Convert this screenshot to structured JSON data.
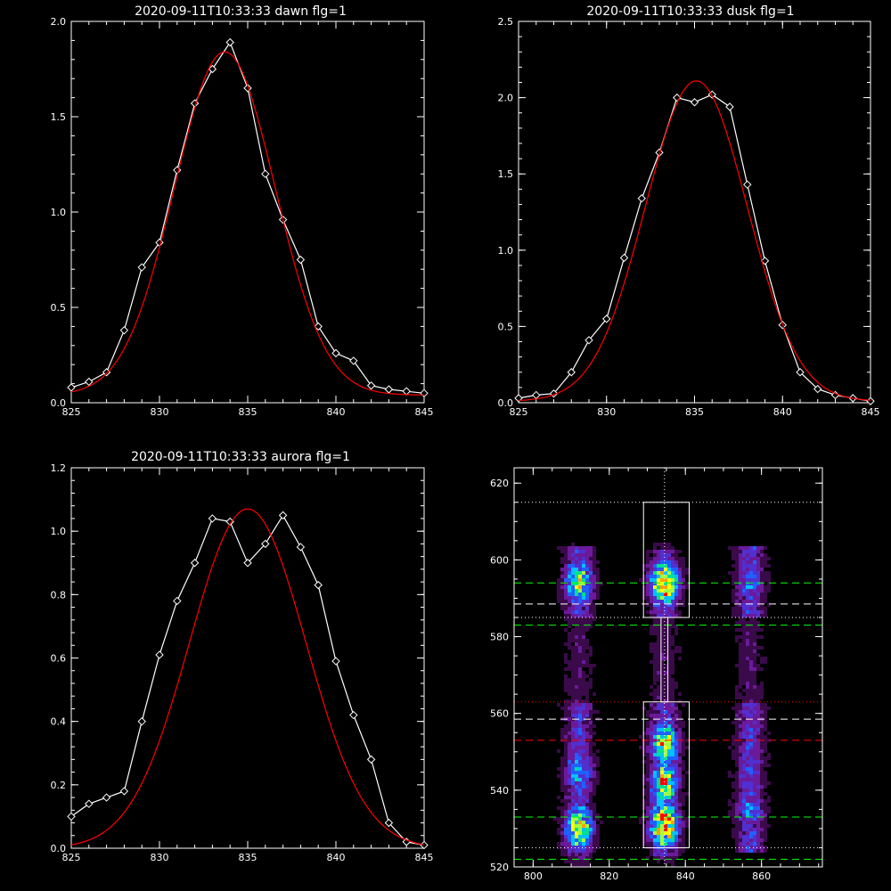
{
  "chart_data": [
    {
      "type": "line",
      "title": "2020-09-11T10:33:33 dawn flg=1",
      "xlim": [
        825,
        845
      ],
      "ylim": [
        0,
        2.0
      ],
      "xticks": [
        "825",
        "830",
        "835",
        "840",
        "845"
      ],
      "yticks": [
        "0.0",
        "0.5",
        "1.0",
        "1.5",
        "2.0"
      ],
      "series": [
        {
          "style": "data",
          "color": "#ffffff",
          "x": [
            825,
            826,
            827,
            828,
            829,
            830,
            831,
            832,
            833,
            834,
            835,
            836,
            837,
            838,
            839,
            840,
            841,
            842,
            843,
            844,
            845
          ],
          "y": [
            0.08,
            0.11,
            0.16,
            0.38,
            0.71,
            0.84,
            1.22,
            1.57,
            1.75,
            1.89,
            1.65,
            1.2,
            0.96,
            0.75,
            0.4,
            0.26,
            0.22,
            0.09,
            0.07,
            0.06,
            0.05
          ]
        },
        {
          "style": "fit",
          "color": "#ff0000",
          "kind": "gaussian",
          "amp": 1.8,
          "center": 833.7,
          "sigma": 2.85,
          "base": 0.04
        }
      ]
    },
    {
      "type": "line",
      "title": "2020-09-11T10:33:33 dusk flg=1",
      "xlim": [
        825,
        845
      ],
      "ylim": [
        0,
        2.5
      ],
      "xticks": [
        "825",
        "830",
        "835",
        "840",
        "845"
      ],
      "yticks": [
        "0.0",
        "0.5",
        "1.0",
        "1.5",
        "2.0",
        "2.5"
      ],
      "series": [
        {
          "style": "data",
          "color": "#ffffff",
          "x": [
            825,
            826,
            827,
            828,
            829,
            830,
            831,
            832,
            833,
            834,
            835,
            836,
            837,
            838,
            839,
            840,
            841,
            842,
            843,
            844,
            845
          ],
          "y": [
            0.03,
            0.05,
            0.06,
            0.2,
            0.41,
            0.55,
            0.95,
            1.34,
            1.64,
            2.0,
            1.97,
            2.02,
            1.94,
            1.43,
            0.93,
            0.51,
            0.2,
            0.09,
            0.05,
            0.03,
            0.01
          ]
        },
        {
          "style": "fit",
          "color": "#ff0000",
          "kind": "gaussian",
          "amp": 2.1,
          "center": 835.1,
          "sigma": 2.9,
          "base": 0.01
        }
      ]
    },
    {
      "type": "line",
      "title": "2020-09-11T10:33:33 aurora flg=1",
      "xlim": [
        825,
        845
      ],
      "ylim": [
        0,
        1.2
      ],
      "xticks": [
        "825",
        "830",
        "835",
        "840",
        "845"
      ],
      "yticks": [
        "0.0",
        "0.2",
        "0.4",
        "0.6",
        "0.8",
        "1.0",
        "1.2"
      ],
      "series": [
        {
          "style": "data",
          "color": "#ffffff",
          "x": [
            825,
            826,
            827,
            828,
            829,
            830,
            831,
            832,
            833,
            834,
            835,
            836,
            837,
            838,
            839,
            840,
            841,
            842,
            843,
            844,
            845
          ],
          "y": [
            0.1,
            0.14,
            0.16,
            0.18,
            0.4,
            0.61,
            0.78,
            0.9,
            1.04,
            1.03,
            0.9,
            0.96,
            1.05,
            0.95,
            0.83,
            0.59,
            0.42,
            0.28,
            0.08,
            0.02,
            0.01
          ]
        },
        {
          "style": "fit",
          "color": "#ff0000",
          "kind": "gaussian",
          "amp": 1.07,
          "center": 835.0,
          "sigma": 3.3,
          "base": 0.0
        }
      ]
    },
    {
      "type": "heatmap",
      "xlim": [
        795,
        876
      ],
      "ylim": [
        520,
        624
      ],
      "xticks": [
        "800",
        "820",
        "840",
        "860"
      ],
      "yticks": [
        "520",
        "540",
        "560",
        "580",
        "600",
        "620"
      ],
      "colormap": [
        "#000000",
        "#3a0a4a",
        "#6a1a9a",
        "#5030d0",
        "#2060ff",
        "#00c0ff",
        "#00e090",
        "#a0ff40",
        "#ffff00",
        "#ffa000",
        "#ff0000"
      ],
      "emission_columns": [
        {
          "x": 812,
          "y_range": [
            524,
            604
          ],
          "peaks": [
            [
              594,
              0.75
            ],
            [
              530,
              0.85
            ],
            [
              545,
              0.55
            ]
          ]
        },
        {
          "x": 834.5,
          "y_range": [
            523,
            603
          ],
          "peaks": [
            [
              594,
              1.0
            ],
            [
              531,
              1.0
            ],
            [
              542,
              0.85
            ],
            [
              552,
              0.8
            ]
          ]
        },
        {
          "x": 857,
          "y_range": [
            524,
            604
          ],
          "peaks": [
            [
              594,
              0.45
            ],
            [
              535,
              0.45
            ]
          ]
        }
      ],
      "boxes": [
        {
          "x": [
            829,
            841
          ],
          "y": [
            585,
            615
          ],
          "color": "#ffffff"
        },
        {
          "x": [
            829,
            841
          ],
          "y": [
            525,
            563
          ],
          "color": "#ffffff"
        }
      ],
      "connector": {
        "x": [
          833.6,
          835.4
        ],
        "y": [
          563,
          585
        ],
        "color": "#ffffff"
      },
      "vlines": [
        {
          "x": 834.5,
          "color": "#ffffff",
          "style": "dotted"
        }
      ],
      "hlines": [
        {
          "y": 615,
          "color": "#ffffff",
          "style": "dotted"
        },
        {
          "y": 594,
          "color": "#00ff00",
          "style": "dashed"
        },
        {
          "y": 588.5,
          "color": "#ffffff",
          "style": "dashed"
        },
        {
          "y": 585,
          "color": "#ffffff",
          "style": "dotted"
        },
        {
          "y": 583,
          "color": "#00ff00",
          "style": "dashed"
        },
        {
          "y": 563,
          "color": "#ff0000",
          "style": "dotted"
        },
        {
          "y": 558.5,
          "color": "#ffffff",
          "style": "dashed"
        },
        {
          "y": 553,
          "color": "#ff0000",
          "style": "dashed"
        },
        {
          "y": 533,
          "color": "#00ff00",
          "style": "dashed"
        },
        {
          "y": 525,
          "color": "#ffffff",
          "style": "dotted"
        },
        {
          "y": 522,
          "color": "#00ff00",
          "style": "dashed"
        }
      ]
    }
  ]
}
